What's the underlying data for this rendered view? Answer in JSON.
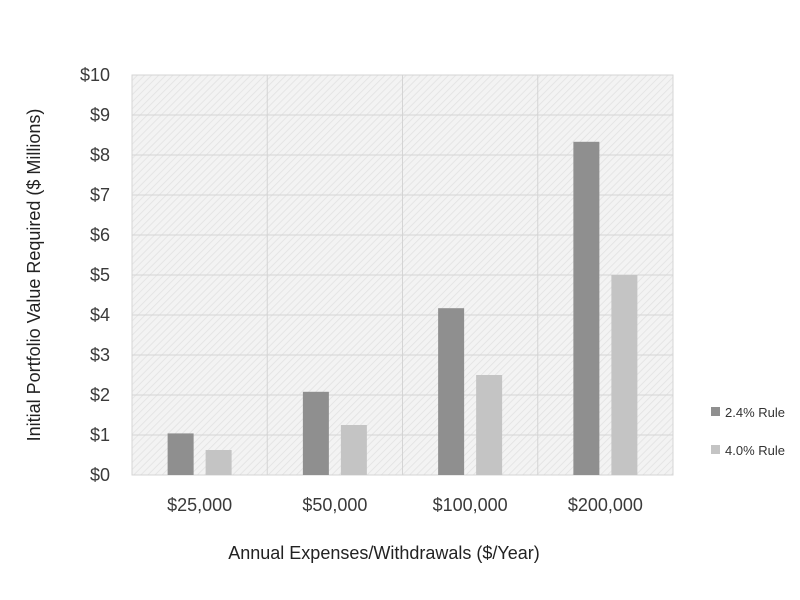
{
  "chart_data": {
    "type": "bar",
    "title": "",
    "xlabel": "Annual Expenses/Withdrawals ($/Year)",
    "ylabel": "Initial Portfolio Value Required ($ Millions)",
    "categories": [
      "$25,000",
      "$50,000",
      "$100,000",
      "$200,000"
    ],
    "ylim": [
      0,
      10
    ],
    "yticks": [
      0,
      1,
      2,
      3,
      4,
      5,
      6,
      7,
      8,
      9,
      10
    ],
    "ytick_labels": [
      "$0",
      "$1",
      "$2",
      "$3",
      "$4",
      "$5",
      "$6",
      "$7",
      "$8",
      "$9",
      "$10"
    ],
    "grid": true,
    "legend_position": "right",
    "series": [
      {
        "name": "2.4% Rule",
        "values": [
          1.04,
          2.08,
          4.17,
          8.33
        ],
        "color": "#8f8f8f"
      },
      {
        "name": "4.0% Rule",
        "values": [
          0.625,
          1.25,
          2.5,
          5.0
        ],
        "color": "#c4c4c4"
      }
    ],
    "plot_background": "#f1f1f1"
  }
}
